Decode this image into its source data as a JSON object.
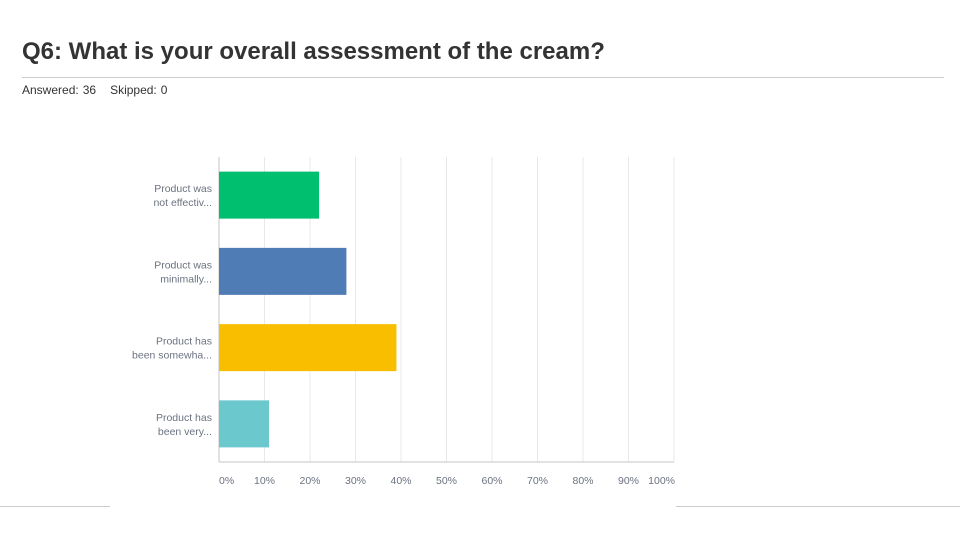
{
  "header": {
    "title": "Q6: What is your overall assessment of the cream?",
    "answered_label": "Answered:",
    "answered_value": "36",
    "skipped_label": "Skipped:",
    "skipped_value": "0"
  },
  "colors": {
    "bar_1": "#00BF6F",
    "bar_2": "#507CB6",
    "bar_3": "#F9BE00",
    "bar_4": "#6BC8CD",
    "grid": "#E8E8E8",
    "axis": "#C6C6C6",
    "text": "#6B7280"
  },
  "chart_data": {
    "type": "bar",
    "orientation": "horizontal",
    "categories": [
      [
        "Product was",
        "not effectiv..."
      ],
      [
        "Product was",
        "minimally..."
      ],
      [
        "Product has",
        "been somewha..."
      ],
      [
        "Product has",
        "been very..."
      ]
    ],
    "values": [
      22,
      28,
      39,
      11
    ],
    "xlim": [
      0,
      100
    ],
    "x_ticks": [
      "0%",
      "10%",
      "20%",
      "30%",
      "40%",
      "50%",
      "60%",
      "70%",
      "80%",
      "90%",
      "100%"
    ],
    "grid": true,
    "legend": "none"
  }
}
